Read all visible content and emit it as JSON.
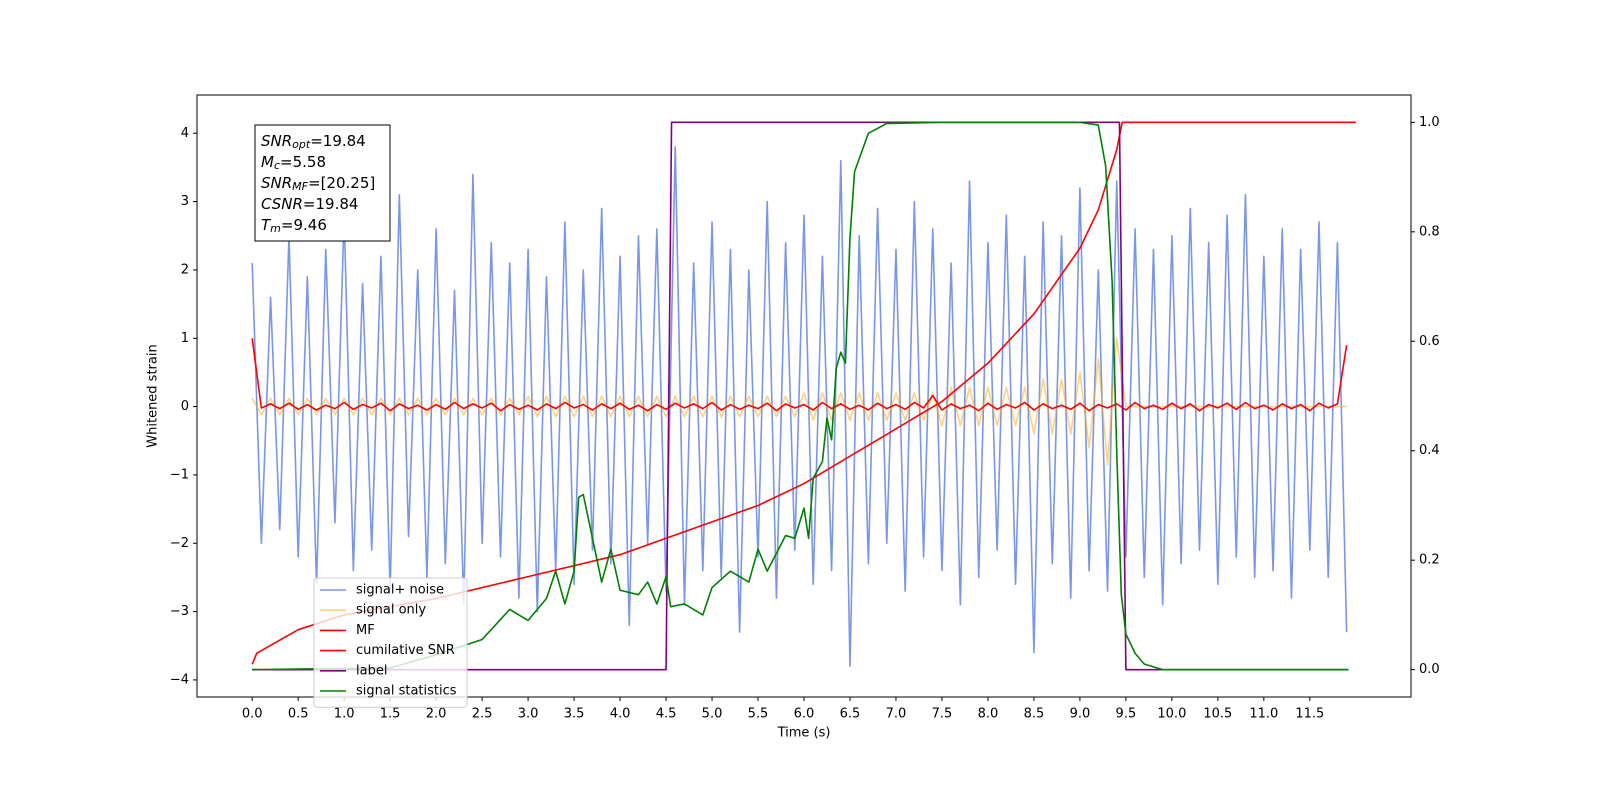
{
  "chart_data": {
    "type": "line",
    "xlabel": "Time (s)",
    "ylabel": "Whitened strain",
    "xlim": [
      -0.6,
      12.6
    ],
    "ylim": [
      -4.25,
      4.56
    ],
    "y2lim": [
      -0.05,
      1.05
    ],
    "xticks": [
      {
        "value": 0,
        "label": "0.0"
      },
      {
        "value": 0.5,
        "label": "0.5"
      },
      {
        "value": 1,
        "label": "1.0"
      },
      {
        "value": 1.5,
        "label": "1.5"
      },
      {
        "value": 2,
        "label": "2.0"
      },
      {
        "value": 2.5,
        "label": "2.5"
      },
      {
        "value": 3,
        "label": "3.0"
      },
      {
        "value": 3.5,
        "label": "3.5"
      },
      {
        "value": 4,
        "label": "4.0"
      },
      {
        "value": 4.5,
        "label": "4.5"
      },
      {
        "value": 5,
        "label": "5.0"
      },
      {
        "value": 5.5,
        "label": "5.5"
      },
      {
        "value": 6,
        "label": "6.0"
      },
      {
        "value": 6.5,
        "label": "6.5"
      },
      {
        "value": 7,
        "label": "7.0"
      },
      {
        "value": 7.5,
        "label": "7.5"
      },
      {
        "value": 8,
        "label": "8.0"
      },
      {
        "value": 8.5,
        "label": "8.5"
      },
      {
        "value": 9,
        "label": "9.0"
      },
      {
        "value": 9.5,
        "label": "9.5"
      },
      {
        "value": 10,
        "label": "10.0"
      },
      {
        "value": 10.5,
        "label": "10.5"
      },
      {
        "value": 11,
        "label": "11.0"
      },
      {
        "value": 11.5,
        "label": "11.5"
      }
    ],
    "yticks": [
      {
        "value": -4,
        "label": "−4"
      },
      {
        "value": -3,
        "label": "−3"
      },
      {
        "value": -2,
        "label": "−2"
      },
      {
        "value": -1,
        "label": "−1"
      },
      0,
      1,
      2,
      3,
      4
    ],
    "y2ticks": [
      {
        "value": 0,
        "label": "0.0"
      },
      {
        "value": 0.2,
        "label": "0.2"
      },
      {
        "value": 0.4,
        "label": "0.4"
      },
      {
        "value": 0.6,
        "label": "0.6"
      },
      {
        "value": 0.8,
        "label": "0.8"
      },
      {
        "value": 1,
        "label": "1.0"
      }
    ],
    "annotations": [
      {
        "base": "SNR",
        "sub": "opt",
        "rest": "=19.84"
      },
      {
        "base": "M",
        "sub": "c",
        "rest": "=5.58"
      },
      {
        "base": "SNR",
        "sub": "MF",
        "rest": "=[20.25]"
      },
      {
        "base": "CSNR",
        "rest": "=19.84"
      },
      {
        "base": "T",
        "sub": "m",
        "rest": "=9.46"
      }
    ],
    "x": [
      0.0,
      0.1,
      0.2,
      0.3,
      0.4,
      0.5,
      0.6,
      0.7,
      0.8,
      0.9,
      1.0,
      1.1,
      1.2,
      1.3,
      1.4,
      1.5,
      1.6,
      1.7,
      1.8,
      1.9,
      2.0,
      2.1,
      2.2,
      2.3,
      2.4,
      2.5,
      2.6,
      2.7,
      2.8,
      2.9,
      3.0,
      3.1,
      3.2,
      3.3,
      3.4,
      3.5,
      3.6,
      3.7,
      3.8,
      3.9,
      4.0,
      4.1,
      4.2,
      4.3,
      4.4,
      4.5,
      4.6,
      4.7,
      4.8,
      4.9,
      5.0,
      5.1,
      5.2,
      5.3,
      5.4,
      5.5,
      5.6,
      5.7,
      5.8,
      5.9,
      6.0,
      6.1,
      6.2,
      6.3,
      6.4,
      6.5,
      6.6,
      6.7,
      6.8,
      6.9,
      7.0,
      7.1,
      7.2,
      7.3,
      7.4,
      7.5,
      7.6,
      7.7,
      7.8,
      7.9,
      8.0,
      8.1,
      8.2,
      8.3,
      8.4,
      8.5,
      8.6,
      8.7,
      8.8,
      8.9,
      9.0,
      9.1,
      9.2,
      9.3,
      9.4,
      9.5,
      9.6,
      9.7,
      9.8,
      9.9,
      10.0,
      10.1,
      10.2,
      10.3,
      10.4,
      10.5,
      10.6,
      10.7,
      10.8,
      10.9,
      11.0,
      11.1,
      11.2,
      11.3,
      11.4,
      11.5,
      11.6,
      11.7,
      11.8,
      11.9
    ],
    "legend": "lower left",
    "series": [
      {
        "name": "signal+ noise",
        "color": "#7a96e8",
        "values": [
          2.1,
          -2.0,
          1.6,
          -1.8,
          2.5,
          -2.2,
          1.9,
          -2.6,
          2.3,
          -1.7,
          2.8,
          -2.4,
          1.8,
          -2.1,
          2.2,
          -2.7,
          3.1,
          -1.9,
          2.0,
          -2.5,
          2.6,
          -2.3,
          1.7,
          -2.9,
          3.4,
          -2.0,
          2.4,
          -2.2,
          2.1,
          -2.8,
          2.3,
          -3.0,
          1.9,
          -2.4,
          2.7,
          -2.6,
          2.0,
          -2.1,
          2.9,
          -2.3,
          2.2,
          -3.2,
          2.5,
          -2.0,
          2.6,
          -2.7,
          3.8,
          -2.9,
          2.1,
          -2.4,
          2.7,
          -2.5,
          2.3,
          -3.3,
          2.0,
          -2.2,
          3.0,
          -2.8,
          2.4,
          -2.1,
          2.8,
          -2.6,
          2.2,
          -2.4,
          3.6,
          -3.8,
          2.5,
          -2.3,
          2.9,
          -2.0,
          2.3,
          -2.7,
          3.0,
          -2.2,
          2.6,
          -2.4,
          2.1,
          -2.9,
          3.3,
          -2.5,
          2.4,
          -2.1,
          2.8,
          -2.6,
          2.2,
          -3.6,
          2.7,
          -2.3,
          2.5,
          -2.8,
          3.2,
          -2.4,
          2.0,
          -2.7,
          3.3,
          -2.2,
          2.6,
          -2.5,
          2.3,
          -2.9,
          2.5,
          -2.3,
          2.9,
          -2.1,
          2.4,
          -2.6,
          2.8,
          -2.2,
          3.1,
          -2.5,
          2.2,
          -2.4,
          2.6,
          -2.8,
          2.3,
          -2.1,
          2.7,
          -2.5,
          2.4,
          -3.3
        ]
      },
      {
        "name": "signal only",
        "color": "#ffa500",
        "alpha": 0.5,
        "values": [
          0.12,
          -0.12,
          0.12,
          -0.12,
          0.12,
          -0.12,
          0.12,
          -0.12,
          0.12,
          -0.12,
          0.12,
          -0.12,
          0.12,
          -0.12,
          0.12,
          -0.12,
          0.12,
          -0.12,
          0.12,
          -0.12,
          0.12,
          -0.12,
          0.12,
          -0.12,
          0.12,
          -0.12,
          0.12,
          -0.12,
          0.12,
          -0.12,
          0.15,
          -0.15,
          0.15,
          -0.15,
          0.15,
          -0.15,
          0.15,
          -0.15,
          0.15,
          -0.15,
          0.15,
          -0.15,
          0.15,
          -0.15,
          0.15,
          -0.15,
          0.15,
          -0.15,
          0.15,
          -0.15,
          0.15,
          -0.15,
          0.15,
          -0.15,
          0.15,
          -0.15,
          0.15,
          -0.15,
          0.15,
          -0.15,
          0.2,
          -0.2,
          0.2,
          -0.2,
          0.2,
          -0.2,
          0.2,
          -0.2,
          0.2,
          -0.2,
          0.2,
          -0.2,
          0.2,
          -0.2,
          0.2,
          -0.28,
          0.28,
          -0.28,
          0.28,
          -0.28,
          0.28,
          -0.28,
          0.28,
          -0.28,
          0.28,
          -0.4,
          0.4,
          -0.4,
          0.4,
          -0.4,
          0.5,
          -0.6,
          0.7,
          -0.85,
          1.0,
          0,
          0,
          0,
          0,
          0,
          0,
          0,
          0,
          0,
          0,
          0,
          0,
          0,
          0,
          0,
          0,
          0,
          0,
          0,
          0,
          0,
          0,
          0,
          0,
          0
        ]
      },
      {
        "name": "MF",
        "color": "#ff0000",
        "values": [
          1.0,
          -0.02,
          0.04,
          -0.03,
          0.05,
          -0.04,
          0.03,
          -0.05,
          0.02,
          -0.03,
          0.06,
          -0.04,
          0.03,
          -0.02,
          0.05,
          -0.06,
          0.04,
          -0.03,
          0.02,
          -0.05,
          0.03,
          -0.04,
          0.06,
          -0.03,
          0.04,
          -0.02,
          0.05,
          -0.06,
          0.03,
          -0.04,
          0.02,
          -0.05,
          0.04,
          -0.03,
          0.06,
          -0.02,
          0.03,
          -0.05,
          0.04,
          -0.03,
          0.05,
          -0.04,
          0.02,
          -0.06,
          0.03,
          -0.04,
          0.05,
          -0.02,
          0.04,
          -0.03,
          0.06,
          -0.05,
          0.03,
          -0.04,
          0.02,
          -0.03,
          0.05,
          -0.06,
          0.04,
          -0.02,
          0.03,
          -0.05,
          0.06,
          -0.03,
          0.04,
          -0.04,
          0.02,
          -0.05,
          0.05,
          -0.03,
          0.03,
          -0.04,
          0.06,
          -0.02,
          0.16,
          -0.05,
          0.04,
          -0.03,
          0.02,
          -0.06,
          0.05,
          -0.04,
          0.03,
          -0.02,
          0.06,
          -0.05,
          0.04,
          -0.03,
          0.02,
          -0.04,
          0.05,
          -0.06,
          0.03,
          -0.02,
          0.04,
          -0.05,
          0.06,
          -0.03,
          0.02,
          -0.04,
          0.05,
          -0.03,
          0.04,
          -0.06,
          0.03,
          -0.02,
          0.05,
          -0.04,
          0.06,
          -0.03,
          0.02,
          -0.05,
          0.04,
          -0.03,
          0.03,
          -0.06,
          0.05,
          -0.02,
          0.04,
          0.9
        ]
      },
      {
        "name": "cumilative SNR",
        "color": "#ff0000",
        "axis": "y2",
        "x": [
          0,
          0.05,
          0.5,
          1.0,
          2.0,
          3.0,
          4.0,
          4.5,
          5.0,
          5.5,
          6.0,
          6.5,
          7.0,
          7.5,
          8.0,
          8.5,
          9.0,
          9.2,
          9.4,
          9.46,
          12.0
        ],
        "values": [
          0.01,
          0.03,
          0.073,
          0.1,
          0.13,
          0.17,
          0.21,
          0.24,
          0.27,
          0.3,
          0.34,
          0.39,
          0.44,
          0.49,
          0.56,
          0.65,
          0.77,
          0.84,
          0.95,
          1.0,
          1.0
        ]
      },
      {
        "name": "label",
        "color": "#800080",
        "axis": "y2",
        "x": [
          0,
          4.5,
          4.56,
          9.43,
          9.5,
          11.92
        ],
        "values": [
          0,
          0,
          1,
          1,
          0,
          0
        ]
      },
      {
        "name": "signal statistics",
        "color": "#008000",
        "axis": "y2",
        "x": [
          0,
          0.5,
          1.5,
          2.0,
          2.5,
          2.8,
          3.0,
          3.2,
          3.3,
          3.4,
          3.5,
          3.55,
          3.6,
          3.7,
          3.8,
          3.9,
          4.0,
          4.2,
          4.3,
          4.4,
          4.5,
          4.55,
          4.7,
          4.9,
          5.0,
          5.2,
          5.4,
          5.5,
          5.6,
          5.8,
          5.9,
          6.0,
          6.05,
          6.1,
          6.2,
          6.25,
          6.3,
          6.35,
          6.4,
          6.45,
          6.5,
          6.55,
          6.7,
          6.9,
          7.5,
          9.0,
          9.2,
          9.28,
          9.35,
          9.4,
          9.45,
          9.5,
          9.6,
          9.7,
          9.9,
          11.92
        ],
        "values": [
          0,
          0.001,
          0.003,
          0.027,
          0.055,
          0.11,
          0.09,
          0.13,
          0.18,
          0.12,
          0.18,
          0.315,
          0.32,
          0.24,
          0.16,
          0.22,
          0.145,
          0.137,
          0.16,
          0.12,
          0.17,
          0.115,
          0.12,
          0.1,
          0.15,
          0.18,
          0.16,
          0.22,
          0.18,
          0.245,
          0.24,
          0.295,
          0.24,
          0.35,
          0.38,
          0.46,
          0.42,
          0.55,
          0.58,
          0.56,
          0.79,
          0.91,
          0.98,
          0.998,
          1.0,
          1.0,
          0.995,
          0.92,
          0.71,
          0.4,
          0.137,
          0.065,
          0.03,
          0.01,
          0,
          0
        ]
      }
    ]
  }
}
